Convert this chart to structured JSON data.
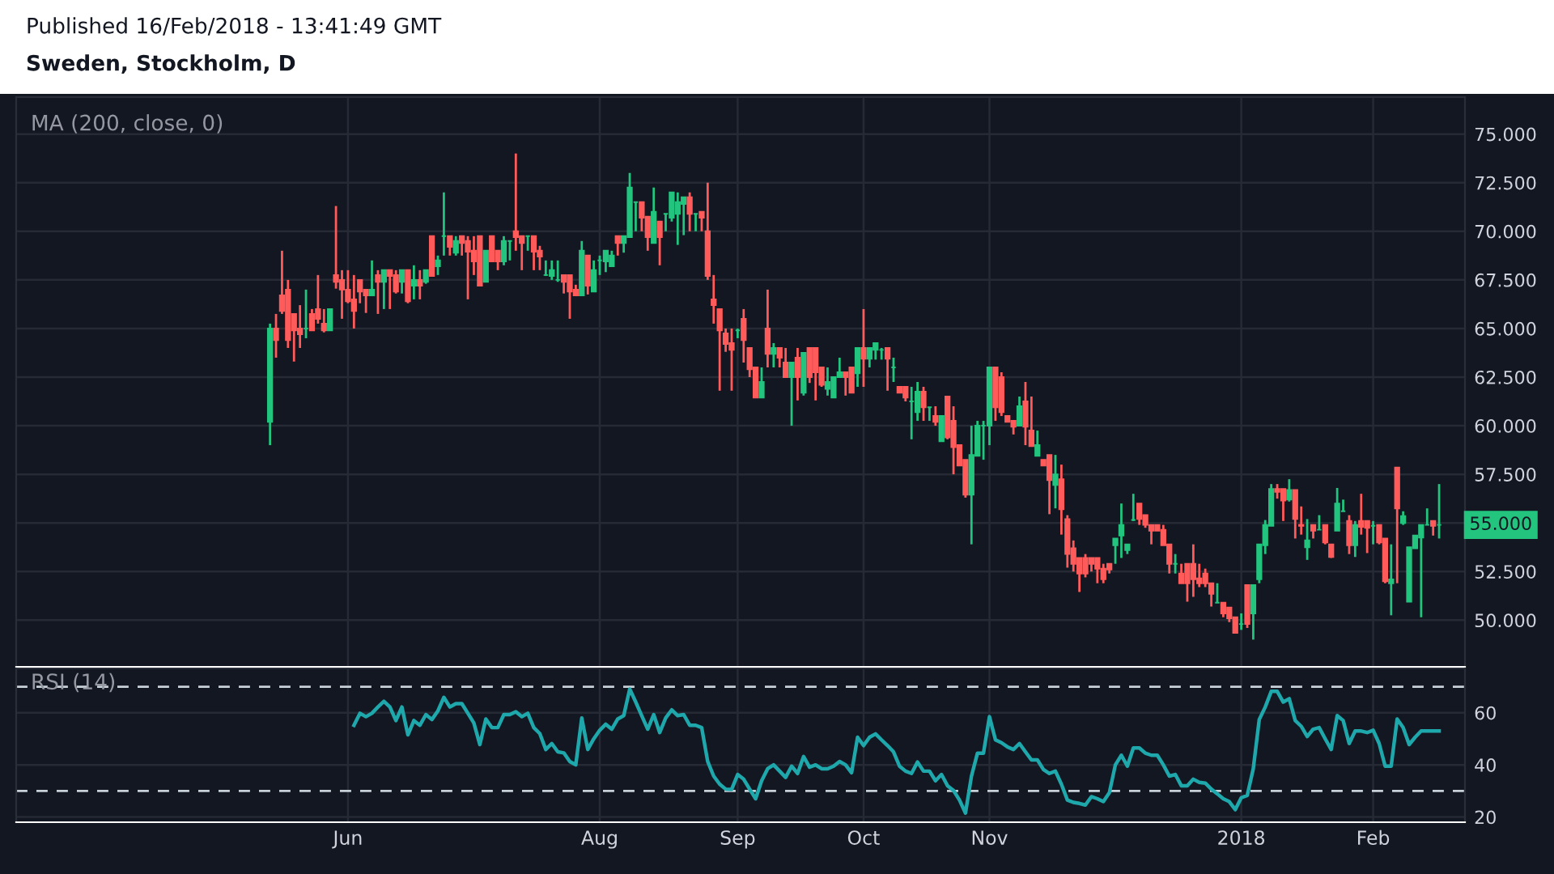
{
  "chart_data": [
    {
      "type": "candlestick",
      "title": "Published 16/Feb/2018 - 13:41:49 GMT",
      "subtitle": "Sweden, Stockholm, D",
      "annotations": [
        "MA (200, close, 0)",
        "55.000"
      ],
      "categories": [
        null,
        null,
        null,
        null,
        null,
        null,
        null,
        null,
        null,
        null,
        null,
        null,
        null,
        null,
        null,
        null,
        null,
        null,
        null,
        null,
        null,
        null,
        null,
        null,
        null,
        null,
        null,
        null,
        null,
        null,
        null,
        null,
        null,
        null,
        null,
        null,
        null,
        null,
        null,
        null,
        null,
        null,
        null,
        null,
        null,
        null,
        null,
        null,
        null,
        null,
        null,
        null,
        null,
        null,
        null,
        null,
        null,
        null,
        null,
        null,
        null,
        null,
        null,
        null,
        null,
        null,
        null,
        null,
        null,
        null,
        null,
        null,
        null,
        null,
        null,
        null,
        null,
        null,
        null,
        null,
        null,
        null,
        null,
        null,
        null,
        null,
        null,
        null,
        null,
        null,
        null,
        null,
        null,
        null,
        null,
        null,
        null,
        null,
        null,
        null,
        null,
        null,
        null,
        null,
        null,
        null,
        null,
        null,
        null,
        null,
        null,
        null,
        null,
        null,
        null,
        null,
        null,
        null,
        null,
        null,
        null,
        null,
        null,
        null,
        null,
        null,
        null,
        null,
        null,
        null,
        null,
        null,
        null,
        null,
        null,
        null,
        null,
        null,
        null,
        null,
        null,
        null,
        null,
        null,
        null,
        null,
        null,
        null,
        null,
        null,
        null,
        null,
        null,
        null,
        null,
        null,
        null,
        null,
        null,
        null,
        null,
        null,
        null,
        null,
        null,
        null,
        null,
        null,
        null,
        null,
        null,
        null,
        null,
        null,
        null,
        null,
        null,
        null,
        null,
        null,
        null,
        null,
        null,
        null,
        null,
        null,
        null,
        null,
        null,
        null,
        null,
        null,
        null,
        null,
        null,
        null
      ],
      "ohlc": [
        [
          60.2,
          65.25,
          59.0,
          65.0
        ],
        [
          65.0,
          65.75,
          63.5,
          64.4
        ],
        [
          66.7,
          69.0,
          65.75,
          65.9
        ],
        [
          67.0,
          67.5,
          64.0,
          64.4
        ],
        [
          65.75,
          65.75,
          63.3,
          64.9
        ],
        [
          65.0,
          66.2,
          64.0,
          64.7
        ],
        [
          65.0,
          67.0,
          64.5,
          65.0
        ],
        [
          65.75,
          66.0,
          64.9,
          64.9
        ],
        [
          66.0,
          67.75,
          65.25,
          65.5
        ],
        [
          65.25,
          66.0,
          64.8,
          64.9
        ],
        [
          64.9,
          66.0,
          64.9,
          66.0
        ],
        [
          67.75,
          71.3,
          67.05,
          67.4
        ],
        [
          67.5,
          68.0,
          65.5,
          67.0
        ],
        [
          67.0,
          68.0,
          66.3,
          66.4
        ],
        [
          66.5,
          67.75,
          65.0,
          65.9
        ],
        [
          67.5,
          67.5,
          66.3,
          66.9
        ],
        [
          67.0,
          67.0,
          65.8,
          66.7
        ],
        [
          66.7,
          68.5,
          66.7,
          67.0
        ],
        [
          67.75,
          68.0,
          65.75,
          67.4
        ],
        [
          67.4,
          68.0,
          66.0,
          68.0
        ],
        [
          68.0,
          68.0,
          66.0,
          67.7
        ],
        [
          67.75,
          68.0,
          66.8,
          66.9
        ],
        [
          67.4,
          68.0,
          66.8,
          68.0
        ],
        [
          68.0,
          68.0,
          66.3,
          66.4
        ],
        [
          67.2,
          68.25,
          66.5,
          67.5
        ],
        [
          67.5,
          68.0,
          66.5,
          67.2
        ],
        [
          67.4,
          68.0,
          67.3,
          68.0
        ],
        [
          69.75,
          69.75,
          67.7,
          67.7
        ],
        [
          68.2,
          68.75,
          67.75,
          68.5
        ],
        [
          69.75,
          72.0,
          68.75,
          69.75
        ],
        [
          69.75,
          69.75,
          68.75,
          69.2
        ],
        [
          68.9,
          69.75,
          68.75,
          69.5
        ],
        [
          69.75,
          69.75,
          68.75,
          69.4
        ],
        [
          69.5,
          69.75,
          66.5,
          68.95
        ],
        [
          69.0,
          69.75,
          67.75,
          68.45
        ],
        [
          69.75,
          69.75,
          67.2,
          67.2
        ],
        [
          67.4,
          69.0,
          67.4,
          69.0
        ],
        [
          69.75,
          69.75,
          68.45,
          68.45
        ],
        [
          69.0,
          69.0,
          68.0,
          68.45
        ],
        [
          68.45,
          69.75,
          68.25,
          69.5
        ],
        [
          69.5,
          69.5,
          68.5,
          69.5
        ],
        [
          70.0,
          74.0,
          69.0,
          69.7
        ],
        [
          69.75,
          69.75,
          68.0,
          69.4
        ],
        [
          69.75,
          69.75,
          69.0,
          69.75
        ],
        [
          69.75,
          69.75,
          68.0,
          68.95
        ],
        [
          69.0,
          69.25,
          68.0,
          68.7
        ],
        [
          67.75,
          68.5,
          67.7,
          67.75
        ],
        [
          67.7,
          68.5,
          67.5,
          68.0
        ],
        [
          67.5,
          68.5,
          67.4,
          67.5
        ],
        [
          67.75,
          67.75,
          66.8,
          67.4
        ],
        [
          67.75,
          67.75,
          65.5,
          66.9
        ],
        [
          67.0,
          67.25,
          66.7,
          66.7
        ],
        [
          66.7,
          69.5,
          66.7,
          69.0
        ],
        [
          68.75,
          68.75,
          66.75,
          67.2
        ],
        [
          66.9,
          68.5,
          66.9,
          68.0
        ],
        [
          68.5,
          68.75,
          67.75,
          68.5
        ],
        [
          68.45,
          69.0,
          67.9,
          69.0
        ],
        [
          68.2,
          69.0,
          68.2,
          68.75
        ],
        [
          69.75,
          69.75,
          68.75,
          69.4
        ],
        [
          69.4,
          69.75,
          68.9,
          69.75
        ],
        [
          69.7,
          73.0,
          69.7,
          72.25
        ],
        [
          71.5,
          71.5,
          70.0,
          71.5
        ],
        [
          71.5,
          71.5,
          70.0,
          70.7
        ],
        [
          70.75,
          70.75,
          69.0,
          69.7
        ],
        [
          69.4,
          72.25,
          69.4,
          71.0
        ],
        [
          70.5,
          70.5,
          68.25,
          69.7
        ],
        [
          70.9,
          70.9,
          70.0,
          70.9
        ],
        [
          70.7,
          72.0,
          70.5,
          72.0
        ],
        [
          70.9,
          72.0,
          69.3,
          71.5
        ],
        [
          71.4,
          71.75,
          69.8,
          71.75
        ],
        [
          71.75,
          72.0,
          70.0,
          70.9
        ],
        [
          70.9,
          70.9,
          70.0,
          70.9
        ],
        [
          71.0,
          71.0,
          70.0,
          70.7
        ],
        [
          70.0,
          72.5,
          67.5,
          67.7
        ],
        [
          66.5,
          67.75,
          65.25,
          66.2
        ],
        [
          66.0,
          66.0,
          61.8,
          64.9
        ],
        [
          64.75,
          65.0,
          63.8,
          64.2
        ],
        [
          64.25,
          65.0,
          61.8,
          63.9
        ],
        [
          64.9,
          65.0,
          64.5,
          64.9
        ],
        [
          65.5,
          66.0,
          63.25,
          64.4
        ],
        [
          64.0,
          64.0,
          62.5,
          62.9
        ],
        [
          63.0,
          63.0,
          61.45,
          61.45
        ],
        [
          61.45,
          63.0,
          61.45,
          62.25
        ],
        [
          65.0,
          67.0,
          63.0,
          63.7
        ],
        [
          63.7,
          64.25,
          63.0,
          64.0
        ],
        [
          64.0,
          64.0,
          63.0,
          63.5
        ],
        [
          63.25,
          64.0,
          62.5,
          62.5
        ],
        [
          62.5,
          63.25,
          60.0,
          63.25
        ],
        [
          63.5,
          64.0,
          61.3,
          62.5
        ],
        [
          61.7,
          63.75,
          61.55,
          63.75
        ],
        [
          64.0,
          64.0,
          62.2,
          62.5
        ],
        [
          64.0,
          64.0,
          61.3,
          62.75
        ],
        [
          63.0,
          63.0,
          62.0,
          62.1
        ],
        [
          61.9,
          63.0,
          61.55,
          62.25
        ],
        [
          61.45,
          62.5,
          61.45,
          62.5
        ],
        [
          62.5,
          63.5,
          62.5,
          62.75
        ],
        [
          62.75,
          62.75,
          61.55,
          62.5
        ],
        [
          63.0,
          63.0,
          61.7,
          61.7
        ],
        [
          62.7,
          64.0,
          62.0,
          64.0
        ],
        [
          64.0,
          66.0,
          62.0,
          63.45
        ],
        [
          63.45,
          64.0,
          63.0,
          64.0
        ],
        [
          63.9,
          64.25,
          63.4,
          64.25
        ],
        [
          63.9,
          64.0,
          63.4,
          63.9
        ],
        [
          64.0,
          64.0,
          61.8,
          63.45
        ],
        [
          63.0,
          63.5,
          62.25,
          63.0
        ],
        [
          62.0,
          62.0,
          61.7,
          61.7
        ],
        [
          62.0,
          62.0,
          61.25,
          61.45
        ],
        [
          61.25,
          62.0,
          59.3,
          61.25
        ],
        [
          60.7,
          62.25,
          60.25,
          61.75
        ],
        [
          61.75,
          62.0,
          60.25,
          60.95
        ],
        [
          60.95,
          60.95,
          60.25,
          60.95
        ],
        [
          60.5,
          61.0,
          60.0,
          60.2
        ],
        [
          59.2,
          60.5,
          59.2,
          60.5
        ],
        [
          61.5,
          61.5,
          59.3,
          59.4
        ],
        [
          60.25,
          61.0,
          57.5,
          58.9
        ],
        [
          59.0,
          59.0,
          57.95,
          57.95
        ],
        [
          58.25,
          58.25,
          56.3,
          56.45
        ],
        [
          56.45,
          60.0,
          53.9,
          58.5
        ],
        [
          58.45,
          60.25,
          58.45,
          60.0
        ],
        [
          60.0,
          60.25,
          58.25,
          60.0
        ],
        [
          60.0,
          63.0,
          59.0,
          63.0
        ],
        [
          63.0,
          63.0,
          60.25,
          60.95
        ],
        [
          62.5,
          62.75,
          60.5,
          60.7
        ],
        [
          60.5,
          60.5,
          60.2,
          60.2
        ],
        [
          60.25,
          60.25,
          59.55,
          59.95
        ],
        [
          60.0,
          61.5,
          60.0,
          61.0
        ],
        [
          61.25,
          62.25,
          59.0,
          59.95
        ],
        [
          59.75,
          61.5,
          58.95,
          58.95
        ],
        [
          58.45,
          59.75,
          58.45,
          59.0
        ],
        [
          58.25,
          58.25,
          57.95,
          57.95
        ],
        [
          58.5,
          58.5,
          55.45,
          57.2
        ],
        [
          56.95,
          58.5,
          55.75,
          57.5
        ],
        [
          57.25,
          58.0,
          54.4,
          55.7
        ],
        [
          55.2,
          55.4,
          52.7,
          53.4
        ],
        [
          53.7,
          54.1,
          52.5,
          52.9
        ],
        [
          53.2,
          53.2,
          51.45,
          52.4
        ],
        [
          53.2,
          53.4,
          52.2,
          52.4
        ],
        [
          53.2,
          53.2,
          52.5,
          52.9
        ],
        [
          53.2,
          53.2,
          51.9,
          52.65
        ],
        [
          52.65,
          52.9,
          51.9,
          52.1
        ],
        [
          52.9,
          52.9,
          52.4,
          52.6
        ],
        [
          53.85,
          54.2,
          52.9,
          54.2
        ],
        [
          54.35,
          56.0,
          53.2,
          54.9
        ],
        [
          53.6,
          53.9,
          53.4,
          53.9
        ],
        [
          55.15,
          56.5,
          55.1,
          55.15
        ],
        [
          56.0,
          56.0,
          54.9,
          55.2
        ],
        [
          55.4,
          55.4,
          54.75,
          54.9
        ],
        [
          54.9,
          54.9,
          53.9,
          54.6
        ],
        [
          54.9,
          54.9,
          54.6,
          54.6
        ],
        [
          54.65,
          54.9,
          53.85,
          53.85
        ],
        [
          53.9,
          53.9,
          52.4,
          52.9
        ],
        [
          52.9,
          53.4,
          52.4,
          52.9
        ],
        [
          52.4,
          52.9,
          51.9,
          51.9
        ],
        [
          52.9,
          52.9,
          50.95,
          51.9
        ],
        [
          52.9,
          53.9,
          51.2,
          52.1
        ],
        [
          52.15,
          52.9,
          51.7,
          51.9
        ],
        [
          52.4,
          52.65,
          51.7,
          51.9
        ],
        [
          51.9,
          51.9,
          50.7,
          51.35
        ],
        [
          50.9,
          51.9,
          50.9,
          50.9
        ],
        [
          50.9,
          50.9,
          50.15,
          50.35
        ],
        [
          50.65,
          50.65,
          49.9,
          50.1
        ],
        [
          50.15,
          50.15,
          49.35,
          49.35
        ],
        [
          49.8,
          50.35,
          49.5,
          49.8
        ],
        [
          51.8,
          51.8,
          49.6,
          49.8
        ],
        [
          50.35,
          51.8,
          49.0,
          51.8
        ],
        [
          52.1,
          53.9,
          51.9,
          53.9
        ],
        [
          53.85,
          55.15,
          53.4,
          54.9
        ],
        [
          54.85,
          57.0,
          54.85,
          56.75
        ],
        [
          56.75,
          57.0,
          56.25,
          56.6
        ],
        [
          56.75,
          56.75,
          55.1,
          56.15
        ],
        [
          56.2,
          57.25,
          56.1,
          56.7
        ],
        [
          56.7,
          56.7,
          54.2,
          55.2
        ],
        [
          54.9,
          55.85,
          54.4,
          54.85
        ],
        [
          53.75,
          55.2,
          53.1,
          54.1
        ],
        [
          54.9,
          54.9,
          54.2,
          54.6
        ],
        [
          54.65,
          55.4,
          54.65,
          54.65
        ],
        [
          54.9,
          54.9,
          53.9,
          54.0
        ],
        [
          53.9,
          53.9,
          53.2,
          53.25
        ],
        [
          54.6,
          56.8,
          54.6,
          56.0
        ],
        [
          55.6,
          56.2,
          55.6,
          55.6
        ],
        [
          55.1,
          55.4,
          53.4,
          53.85
        ],
        [
          53.85,
          55.1,
          53.25,
          54.9
        ],
        [
          55.1,
          56.5,
          54.4,
          54.8
        ],
        [
          55.1,
          55.1,
          53.45,
          54.75
        ],
        [
          54.85,
          55.1,
          53.9,
          54.85
        ],
        [
          54.9,
          54.9,
          53.9,
          54.0
        ],
        [
          54.2,
          54.2,
          51.9,
          52.0
        ],
        [
          51.9,
          53.9,
          50.25,
          52.1
        ],
        [
          57.85,
          57.85,
          51.9,
          55.75
        ],
        [
          55.0,
          55.6,
          54.9,
          55.35
        ],
        [
          50.95,
          53.75,
          50.95,
          53.75
        ],
        [
          53.7,
          54.35,
          53.7,
          54.35
        ],
        [
          54.25,
          54.9,
          50.15,
          54.9
        ],
        [
          54.9,
          55.75,
          54.9,
          54.9
        ],
        [
          55.1,
          55.1,
          54.35,
          54.85
        ],
        [
          54.9,
          57.0,
          54.2,
          54.9
        ]
      ],
      "colors": [
        "#22c47e",
        "#ff5b5b",
        "#ff5b5b",
        "#ff5b5b",
        "#ff5b5b",
        "#ff5b5b",
        "#22c47e",
        "#ff5b5b",
        "#ff5b5b",
        "#ff5b5b",
        "#22c47e",
        "#ff5b5b",
        "#ff5b5b",
        "#ff5b5b",
        "#ff5b5b",
        "#ff5b5b",
        "#ff5b5b",
        "#22c47e",
        "#ff5b5b",
        "#22c47e",
        "#ff5b5b",
        "#ff5b5b",
        "#22c47e",
        "#ff5b5b",
        "#22c47e",
        "#ff5b5b",
        "#22c47e",
        "#ff5b5b",
        "#22c47e",
        "#22c47e",
        "#ff5b5b",
        "#22c47e",
        "#ff5b5b",
        "#ff5b5b",
        "#ff5b5b",
        "#ff5b5b",
        "#22c47e",
        "#ff5b5b",
        "#ff5b5b",
        "#22c47e",
        "#22c47e",
        "#ff5b5b",
        "#ff5b5b",
        "#22c47e",
        "#ff5b5b",
        "#ff5b5b",
        "#22c47e",
        "#22c47e",
        "#22c47e",
        "#ff5b5b",
        "#ff5b5b",
        "#ff5b5b",
        "#22c47e",
        "#ff5b5b",
        "#22c47e",
        "#22c47e",
        "#22c47e",
        "#22c47e",
        "#ff5b5b",
        "#22c47e",
        "#22c47e",
        "#22c47e",
        "#ff5b5b",
        "#ff5b5b",
        "#22c47e",
        "#ff5b5b",
        "#22c47e",
        "#22c47e",
        "#22c47e",
        "#22c47e",
        "#ff5b5b",
        "#22c47e",
        "#ff5b5b",
        "#ff5b5b",
        "#ff5b5b",
        "#ff5b5b",
        "#ff5b5b",
        "#ff5b5b",
        "#22c47e",
        "#ff5b5b",
        "#ff5b5b",
        "#ff5b5b",
        "#22c47e",
        "#ff5b5b",
        "#22c47e",
        "#ff5b5b",
        "#ff5b5b",
        "#22c47e",
        "#ff5b5b",
        "#22c47e",
        "#ff5b5b",
        "#ff5b5b",
        "#ff5b5b",
        "#22c47e",
        "#22c47e",
        "#22c47e",
        "#ff5b5b",
        "#ff5b5b",
        "#22c47e",
        "#ff5b5b",
        "#22c47e",
        "#22c47e",
        "#22c47e",
        "#ff5b5b",
        "#22c47e",
        "#ff5b5b",
        "#ff5b5b",
        "#22c47e",
        "#22c47e",
        "#ff5b5b",
        "#22c47e",
        "#ff5b5b",
        "#22c47e",
        "#ff5b5b",
        "#ff5b5b",
        "#ff5b5b",
        "#ff5b5b",
        "#22c47e",
        "#22c47e",
        "#22c47e",
        "#22c47e",
        "#ff5b5b",
        "#ff5b5b",
        "#ff5b5b",
        "#ff5b5b",
        "#22c47e",
        "#ff5b5b",
        "#ff5b5b",
        "#22c47e",
        "#ff5b5b",
        "#ff5b5b",
        "#22c47e",
        "#ff5b5b",
        "#ff5b5b",
        "#ff5b5b",
        "#ff5b5b",
        "#ff5b5b",
        "#ff5b5b",
        "#ff5b5b",
        "#ff5b5b",
        "#ff5b5b",
        "#22c47e",
        "#22c47e",
        "#22c47e",
        "#22c47e",
        "#ff5b5b",
        "#ff5b5b",
        "#ff5b5b",
        "#ff5b5b",
        "#ff5b5b",
        "#ff5b5b",
        "#22c47e",
        "#ff5b5b",
        "#ff5b5b",
        "#ff5b5b",
        "#ff5b5b",
        "#ff5b5b",
        "#ff5b5b",
        "#22c47e",
        "#ff5b5b",
        "#ff5b5b",
        "#ff5b5b",
        "#22c47e",
        "#ff5b5b",
        "#22c47e",
        "#22c47e",
        "#22c47e",
        "#22c47e",
        "#ff5b5b",
        "#ff5b5b",
        "#22c47e",
        "#ff5b5b",
        "#ff5b5b",
        "#22c47e",
        "#ff5b5b",
        "#22c47e",
        "#ff5b5b",
        "#ff5b5b",
        "#22c47e",
        "#22c47e",
        "#ff5b5b",
        "#22c47e",
        "#ff5b5b",
        "#ff5b5b",
        "#22c47e",
        "#ff5b5b",
        "#ff5b5b",
        "#22c47e",
        "#ff5b5b",
        "#22c47e",
        "#22c47e",
        "#22c47e",
        "#22c47e",
        "#22c47e",
        "#ff5b5b",
        "#22c47e"
      ],
      "ylim": [
        47.6,
        76.9
      ],
      "yticks": [
        {
          "value": 50,
          "label": "50.000"
        },
        {
          "value": 52.5,
          "label": "52.500"
        },
        {
          "value": 55,
          "label": null
        },
        {
          "value": 57.5,
          "label": "57.500"
        },
        {
          "value": 60,
          "label": "60.000"
        },
        {
          "value": 62.5,
          "label": "62.500"
        },
        {
          "value": 65,
          "label": "65.000"
        },
        {
          "value": 67.5,
          "label": "67.500"
        },
        {
          "value": 70,
          "label": "70.000"
        },
        {
          "value": 72.5,
          "label": "72.500"
        },
        {
          "value": 75,
          "label": "75.000"
        }
      ],
      "grid": true,
      "tick_labels": "y"
    },
    {
      "type": "line",
      "annotations": [
        "RSI (14)"
      ],
      "categories": [
        null,
        null,
        null,
        null,
        null,
        null,
        null,
        null,
        null,
        null,
        null,
        null,
        null,
        "Jun",
        null,
        null,
        null,
        null,
        null,
        null,
        null,
        null,
        null,
        null,
        null,
        null,
        null,
        null,
        null,
        null,
        null,
        null,
        null,
        null,
        null,
        null,
        null,
        null,
        null,
        null,
        null,
        null,
        null,
        null,
        null,
        null,
        null,
        null,
        null,
        null,
        null,
        null,
        null,
        null,
        null,
        "Aug",
        null,
        null,
        null,
        null,
        null,
        null,
        null,
        null,
        null,
        null,
        null,
        null,
        null,
        null,
        null,
        null,
        null,
        null,
        null,
        null,
        null,
        null,
        "Sep",
        null,
        null,
        null,
        null,
        null,
        null,
        null,
        null,
        null,
        null,
        null,
        null,
        null,
        null,
        null,
        null,
        null,
        null,
        null,
        null,
        "Oct",
        null,
        null,
        null,
        null,
        null,
        null,
        null,
        null,
        null,
        null,
        null,
        null,
        null,
        null,
        null,
        null,
        null,
        null,
        null,
        null,
        "Nov",
        null,
        null,
        null,
        null,
        null,
        null,
        null,
        null,
        null,
        null,
        null,
        null,
        null,
        null,
        null,
        null,
        null,
        null,
        null,
        null,
        null,
        null,
        null,
        null,
        null,
        null,
        null,
        null,
        null,
        null,
        null,
        null,
        null,
        null,
        null,
        null,
        null,
        null,
        null,
        null,
        null,
        "2018",
        null,
        null,
        null,
        null,
        null,
        null,
        null,
        null,
        null,
        null,
        null,
        null,
        null,
        null,
        null,
        null,
        null,
        null,
        null,
        null,
        null,
        "Feb",
        null,
        null,
        null,
        null,
        null,
        null,
        null,
        null,
        null,
        null,
        null
      ],
      "series": [
        {
          "color": "#1fa8ac",
          "values": [
            null,
            null,
            null,
            null,
            null,
            null,
            null,
            null,
            null,
            null,
            null,
            null,
            null,
            null,
            55.2,
            59.8,
            58.5,
            59.8,
            62.2,
            64.4,
            62.2,
            57.0,
            62.2,
            51.5,
            57.0,
            55.2,
            59.3,
            57.4,
            60.7,
            65.9,
            62.2,
            63.5,
            63.5,
            59.8,
            56.1,
            47.8,
            57.6,
            54.3,
            54.3,
            59.3,
            59.3,
            60.4,
            58.5,
            59.8,
            54.3,
            52.0,
            45.9,
            48.2,
            45.0,
            44.6,
            41.3,
            40.0,
            58.0,
            45.9,
            50.0,
            53.3,
            55.6,
            53.7,
            57.6,
            58.9,
            69.1,
            64.1,
            58.9,
            53.7,
            59.3,
            52.4,
            58.0,
            61.1,
            58.9,
            59.3,
            55.2,
            55.2,
            54.3,
            41.3,
            35.7,
            32.6,
            30.7,
            30.6,
            36.3,
            34.5,
            30.7,
            27.0,
            33.9,
            38.5,
            40.0,
            37.6,
            35.2,
            39.5,
            36.7,
            43.2,
            39.1,
            40.0,
            38.5,
            38.5,
            39.5,
            41.3,
            40.0,
            37.0,
            50.6,
            47.4,
            50.6,
            51.9,
            49.6,
            47.4,
            45.0,
            39.5,
            37.6,
            36.7,
            41.1,
            37.6,
            37.6,
            33.9,
            36.3,
            32.0,
            30.2,
            26.5,
            21.5,
            35.7,
            44.5,
            44.5,
            58.5,
            49.6,
            48.5,
            46.9,
            45.9,
            48.2,
            45.0,
            41.9,
            41.9,
            38.2,
            36.7,
            37.6,
            32.6,
            26.5,
            25.6,
            25.2,
            24.6,
            27.8,
            27.0,
            25.9,
            29.3,
            40.0,
            43.7,
            39.5,
            46.5,
            46.5,
            44.5,
            43.7,
            43.7,
            40.0,
            35.7,
            36.3,
            32.0,
            32.0,
            34.5,
            33.3,
            33.0,
            30.7,
            28.9,
            27.0,
            25.9,
            22.8,
            27.4,
            28.3,
            38.5,
            57.4,
            62.2,
            68.2,
            68.2,
            64.1,
            65.4,
            57.0,
            54.8,
            50.9,
            53.7,
            54.3,
            50.0,
            45.9,
            58.9,
            57.0,
            48.2,
            53.0,
            53.0,
            52.4,
            53.3,
            48.2,
            39.5,
            39.5,
            57.6,
            54.3,
            47.8,
            50.6,
            53.0,
            53.0,
            53.0,
            53.0
          ]
        }
      ],
      "ylim": [
        18,
        77
      ],
      "yticks": [
        20,
        40,
        60
      ],
      "ref_lines": [
        {
          "axis": "y",
          "value": 70,
          "line_style": "dashed",
          "color": "#c8d0d8"
        },
        {
          "axis": "y",
          "value": 30,
          "line_style": "dashed",
          "color": "#c8d0d8"
        }
      ],
      "grid": true
    }
  ]
}
